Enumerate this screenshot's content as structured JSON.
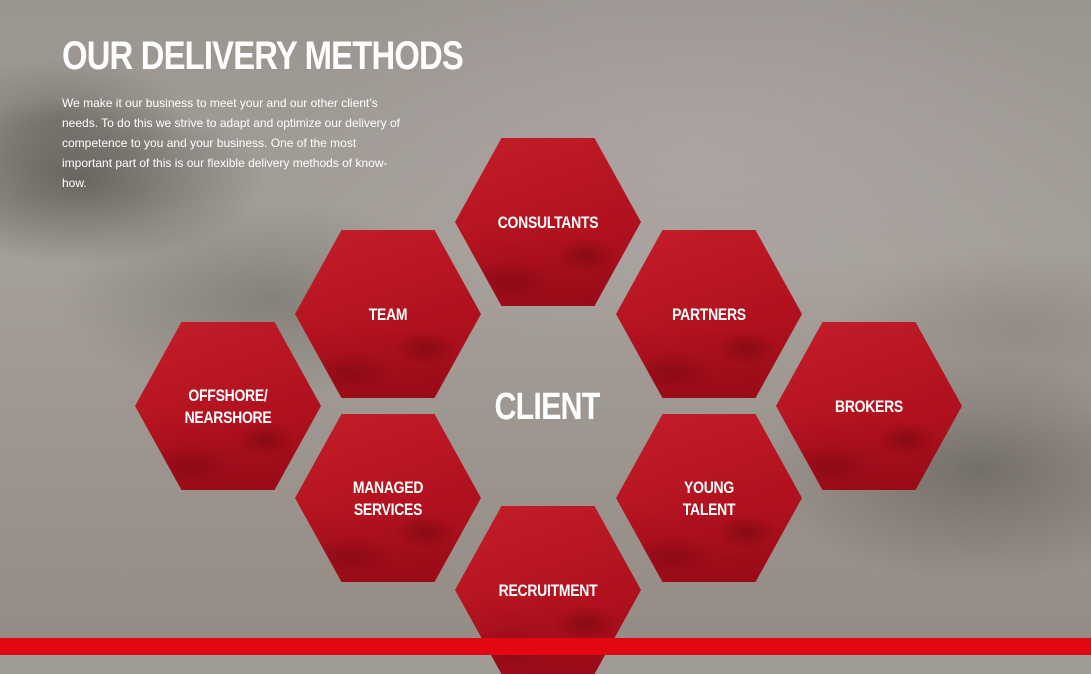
{
  "page": {
    "title": "OUR DELIVERY METHODS",
    "intro": "We make it our business to meet your and our other client’s needs. To do this we strive to adapt and optimize our delivery of competence to you and your business. One of the most important part of this is our flexible delivery methods of know-how.",
    "center_label": "CLIENT"
  },
  "methods": {
    "consultants": {
      "line1": "CONSULTANTS",
      "line2": ""
    },
    "team": {
      "line1": "TEAM",
      "line2": ""
    },
    "partners": {
      "line1": "PARTNERS",
      "line2": ""
    },
    "offshore": {
      "line1": "OFFSHORE/",
      "line2": "NEARSHORE"
    },
    "brokers": {
      "line1": "BROKERS",
      "line2": ""
    },
    "managed_services": {
      "line1": "MANAGED",
      "line2": "SERVICES"
    },
    "young_talent": {
      "line1": "YOUNG",
      "line2": "TALENT"
    },
    "recruitment": {
      "line1": "RECRUITMENT",
      "line2": ""
    }
  },
  "colors": {
    "hexagon": "#b2121f",
    "accent_bar": "#e30613",
    "text": "#ffffff"
  }
}
